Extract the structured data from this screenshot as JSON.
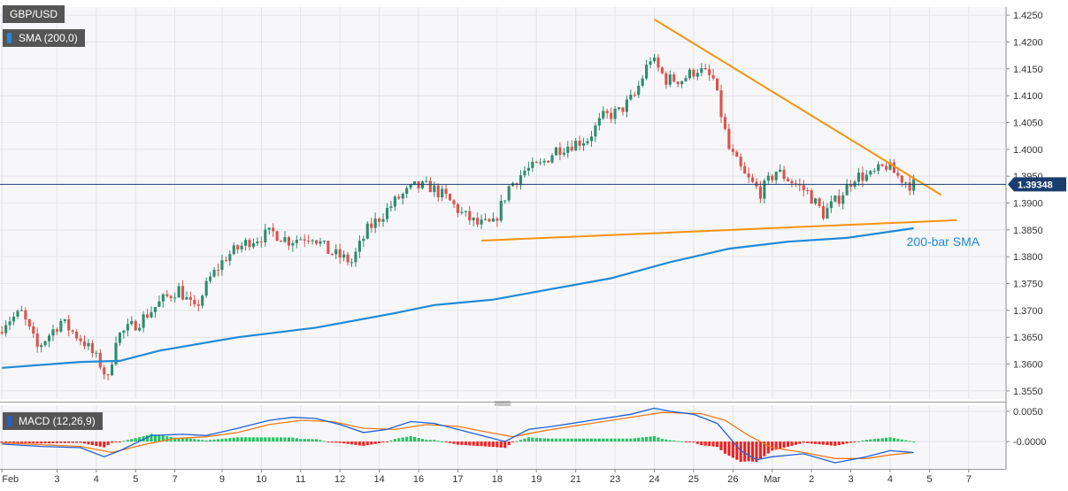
{
  "chart_data": [
    {
      "type": "candlestick",
      "symbol": "GBP/USD",
      "indicator_label": "SMA (200,0)",
      "last_price_label": "1.39348",
      "sma_label": "200-bar SMA",
      "y_ticks": [
        "1.4250",
        "1.4200",
        "1.4150",
        "1.4100",
        "1.4050",
        "1.4000",
        "1.3950",
        "1.3900",
        "1.3850",
        "1.3800",
        "1.3750",
        "1.3700",
        "1.3650",
        "1.3600",
        "1.3550"
      ],
      "ylim": [
        1.3535,
        1.4265
      ],
      "x_ticks": [
        "Feb",
        "3",
        "4",
        "5",
        "7",
        "9",
        "10",
        "11",
        "12",
        "14",
        "16",
        "17",
        "18",
        "19",
        "21",
        "23",
        "24",
        "25",
        "26",
        "Mar",
        "2",
        "3",
        "4",
        "5",
        "7"
      ],
      "x_tick_bar_index": [
        0,
        14,
        24,
        34,
        44,
        56,
        66,
        76,
        86,
        96,
        106,
        116,
        126,
        136,
        146,
        156,
        166,
        176,
        186,
        196,
        206,
        216,
        226,
        236,
        246
      ],
      "x_max_bar": 256,
      "grid": true,
      "colors": {
        "up": "#2e8b6e",
        "down": "#d9534f",
        "sma": "#1f8ad6",
        "trendline": "#f5930f",
        "price_line": "#1a3d6e"
      },
      "trendlines": [
        {
          "from": [
            166,
            1.4242
          ],
          "to": [
            239,
            1.3915
          ]
        },
        {
          "from": [
            122,
            1.383
          ],
          "to": [
            243,
            1.3868
          ]
        }
      ],
      "sma_points": [
        [
          0,
          1.3593
        ],
        [
          20,
          1.3604
        ],
        [
          30,
          1.3606
        ],
        [
          40,
          1.3625
        ],
        [
          60,
          1.365
        ],
        [
          80,
          1.3668
        ],
        [
          100,
          1.3695
        ],
        [
          110,
          1.371
        ],
        [
          125,
          1.372
        ],
        [
          140,
          1.374
        ],
        [
          155,
          1.376
        ],
        [
          170,
          1.379
        ],
        [
          185,
          1.3815
        ],
        [
          200,
          1.3828
        ],
        [
          215,
          1.3835
        ],
        [
          232,
          1.3853
        ]
      ],
      "anchors": [
        [
          0,
          1.366
        ],
        [
          2,
          1.368
        ],
        [
          6,
          1.3695
        ],
        [
          10,
          1.363
        ],
        [
          16,
          1.368
        ],
        [
          22,
          1.364
        ],
        [
          26,
          1.36
        ],
        [
          28,
          1.357
        ],
        [
          30,
          1.365
        ],
        [
          36,
          1.368
        ],
        [
          42,
          1.372
        ],
        [
          46,
          1.374
        ],
        [
          50,
          1.37
        ],
        [
          54,
          1.376
        ],
        [
          58,
          1.38
        ],
        [
          64,
          1.383
        ],
        [
          70,
          1.3845
        ],
        [
          74,
          1.383
        ],
        [
          80,
          1.384
        ],
        [
          84,
          1.381
        ],
        [
          90,
          1.379
        ],
        [
          94,
          1.385
        ],
        [
          98,
          1.388
        ],
        [
          102,
          1.391
        ],
        [
          106,
          1.393
        ],
        [
          110,
          1.393
        ],
        [
          114,
          1.391
        ],
        [
          118,
          1.388
        ],
        [
          122,
          1.386
        ],
        [
          126,
          1.386
        ],
        [
          130,
          1.393
        ],
        [
          134,
          1.396
        ],
        [
          138,
          1.397
        ],
        [
          142,
          1.4
        ],
        [
          146,
          1.401
        ],
        [
          150,
          1.402
        ],
        [
          154,
          1.406
        ],
        [
          158,
          1.407
        ],
        [
          162,
          1.41
        ],
        [
          166,
          1.417
        ],
        [
          168,
          1.415
        ],
        [
          170,
          1.413
        ],
        [
          174,
          1.413
        ],
        [
          178,
          1.415
        ],
        [
          182,
          1.413
        ],
        [
          186,
          1.4
        ],
        [
          190,
          1.395
        ],
        [
          194,
          1.392
        ],
        [
          198,
          1.396
        ],
        [
          202,
          1.394
        ],
        [
          206,
          1.392
        ],
        [
          210,
          1.388
        ],
        [
          214,
          1.391
        ],
        [
          218,
          1.395
        ],
        [
          222,
          1.395
        ],
        [
          226,
          1.397
        ],
        [
          229,
          1.395
        ],
        [
          232,
          1.3935
        ]
      ],
      "macd": {
        "label": "MACD (12,26,9)",
        "y_ticks": [
          "0.0050",
          "-0.0000"
        ],
        "ylim": [
          -0.0045,
          0.006
        ],
        "colors": {
          "macd": "#1f5fd6",
          "signal": "#f07a1a",
          "hist_pos": "#22c55e",
          "hist_neg": "#ef2020"
        },
        "macd_points": [
          [
            0,
            -0.0004
          ],
          [
            10,
            -0.0008
          ],
          [
            20,
            -0.001
          ],
          [
            26,
            -0.0025
          ],
          [
            30,
            -0.0015
          ],
          [
            38,
            0.001
          ],
          [
            46,
            0.0012
          ],
          [
            52,
            0.001
          ],
          [
            60,
            0.0022
          ],
          [
            68,
            0.0035
          ],
          [
            74,
            0.004
          ],
          [
            80,
            0.0038
          ],
          [
            86,
            0.0028
          ],
          [
            92,
            0.0015
          ],
          [
            98,
            0.002
          ],
          [
            104,
            0.0033
          ],
          [
            110,
            0.003
          ],
          [
            116,
            0.002
          ],
          [
            122,
            0.001
          ],
          [
            128,
            0.0
          ],
          [
            134,
            0.002
          ],
          [
            140,
            0.0025
          ],
          [
            150,
            0.0035
          ],
          [
            160,
            0.0045
          ],
          [
            166,
            0.0055
          ],
          [
            170,
            0.005
          ],
          [
            176,
            0.0045
          ],
          [
            182,
            0.003
          ],
          [
            188,
            -0.0015
          ],
          [
            192,
            -0.003
          ],
          [
            196,
            -0.0025
          ],
          [
            204,
            -0.002
          ],
          [
            212,
            -0.0035
          ],
          [
            220,
            -0.0025
          ],
          [
            226,
            -0.0015
          ],
          [
            232,
            -0.0018
          ]
        ],
        "signal_points": [
          [
            0,
            -0.0002
          ],
          [
            10,
            -0.0005
          ],
          [
            20,
            -0.0008
          ],
          [
            28,
            -0.0018
          ],
          [
            36,
            -0.0005
          ],
          [
            44,
            0.0005
          ],
          [
            52,
            0.0008
          ],
          [
            60,
            0.0015
          ],
          [
            68,
            0.0028
          ],
          [
            76,
            0.0035
          ],
          [
            84,
            0.0033
          ],
          [
            92,
            0.0022
          ],
          [
            100,
            0.002
          ],
          [
            108,
            0.0028
          ],
          [
            116,
            0.0025
          ],
          [
            124,
            0.0015
          ],
          [
            130,
            0.0008
          ],
          [
            138,
            0.0018
          ],
          [
            148,
            0.0028
          ],
          [
            158,
            0.0038
          ],
          [
            168,
            0.0048
          ],
          [
            178,
            0.0046
          ],
          [
            184,
            0.0035
          ],
          [
            190,
            0.001
          ],
          [
            196,
            -0.001
          ],
          [
            204,
            -0.0018
          ],
          [
            212,
            -0.0028
          ],
          [
            220,
            -0.0028
          ],
          [
            226,
            -0.0022
          ],
          [
            232,
            -0.0018
          ]
        ]
      }
    }
  ]
}
